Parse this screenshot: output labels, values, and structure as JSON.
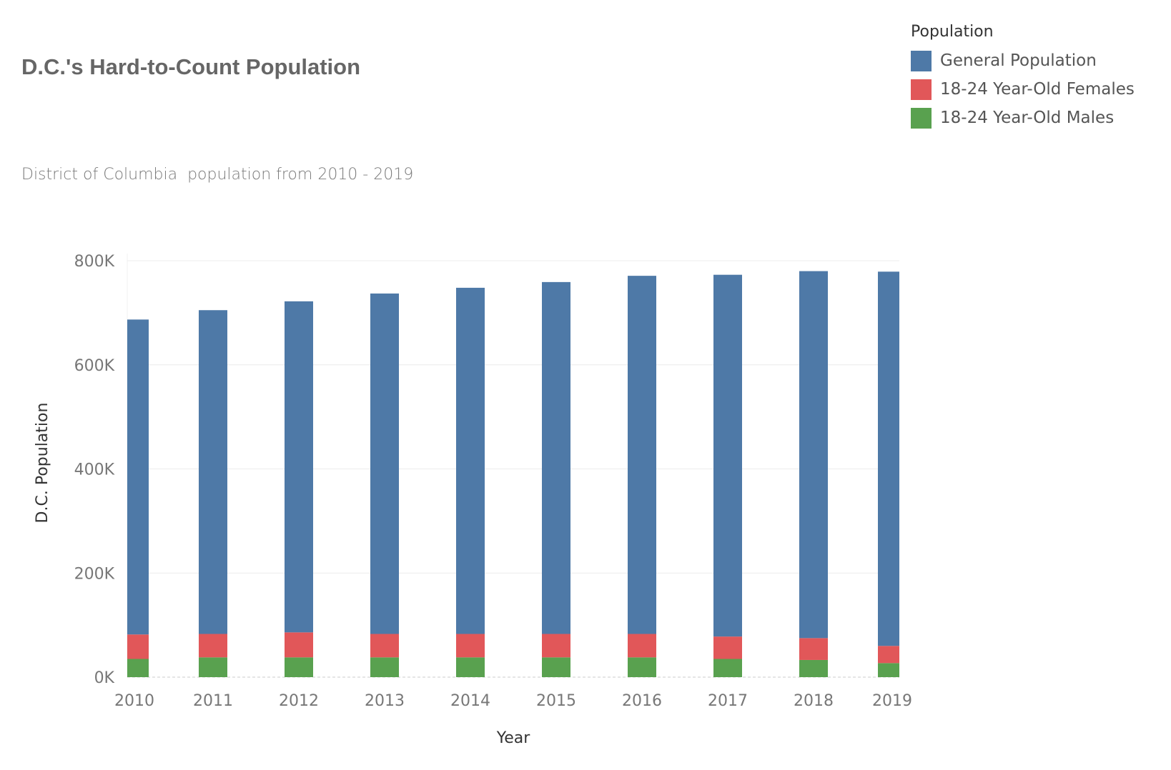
{
  "chart_data": {
    "type": "bar",
    "stacked": true,
    "title": "D.C.'s Hard-to-Count Population",
    "subtitle": "District of Columbia  population from 2010 - 2019",
    "xlabel": "Year",
    "ylabel": "D.C. Population",
    "categories": [
      "2010",
      "2011",
      "2012",
      "2013",
      "2014",
      "2015",
      "2016",
      "2017",
      "2018",
      "2019"
    ],
    "ylim": [
      0,
      800000
    ],
    "yticks": [
      0,
      200000,
      400000,
      600000,
      800000
    ],
    "ytick_labels": [
      "0K",
      "200K",
      "400K",
      "600K",
      "800K"
    ],
    "grid": true,
    "legend": {
      "title": "Population",
      "position": "top-right"
    },
    "series": [
      {
        "name": "18-24 Year-Old Males",
        "color": "#59a14f",
        "values": [
          35000,
          38000,
          38000,
          38000,
          38000,
          38000,
          38000,
          35000,
          33000,
          27000
        ]
      },
      {
        "name": "18-24 Year-Old Females",
        "color": "#e15759",
        "values": [
          47000,
          45000,
          48000,
          45000,
          45000,
          45000,
          45000,
          43000,
          42000,
          33000
        ]
      },
      {
        "name": "General Population",
        "color": "#4e79a7",
        "values": [
          605000,
          622000,
          636000,
          654000,
          665000,
          676000,
          688000,
          695000,
          705000,
          719000
        ]
      }
    ]
  }
}
